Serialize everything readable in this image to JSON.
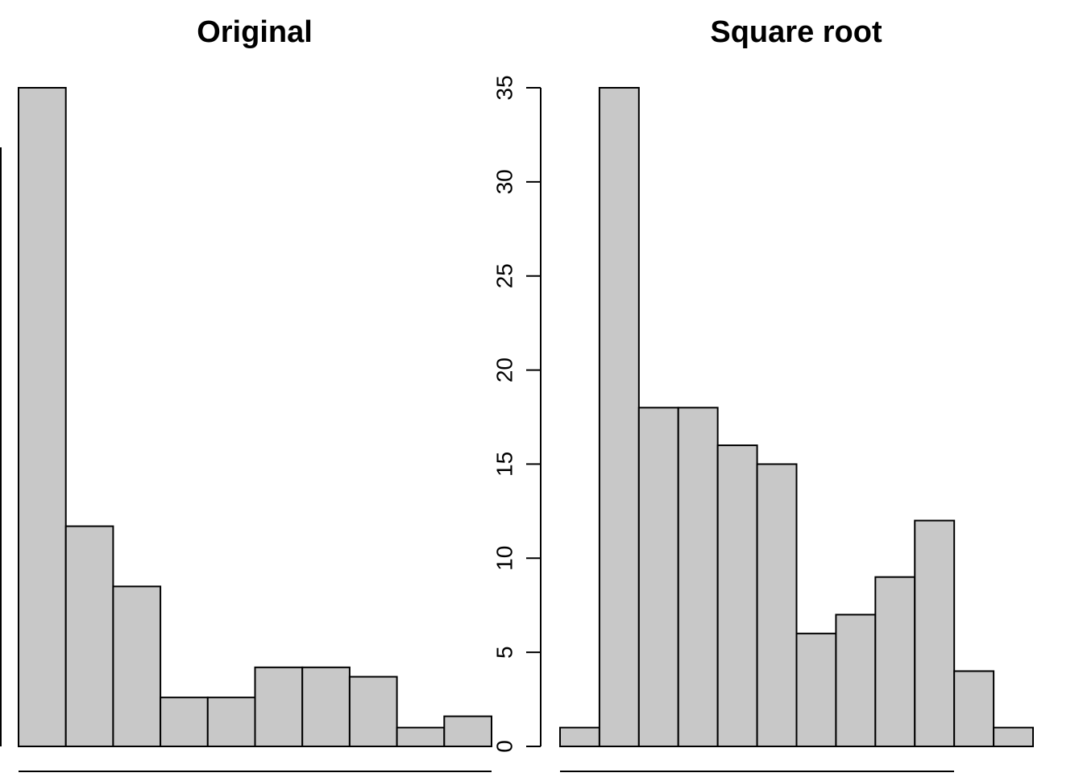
{
  "chart_data": [
    {
      "type": "bar",
      "title": "Original",
      "values": [
        35,
        11.7,
        8.5,
        2.6,
        2.6,
        4.2,
        4.2,
        3.7,
        1.0,
        1.6
      ],
      "ylim": [
        0,
        35
      ],
      "grid": false,
      "bar_fill": "#c8c8c8",
      "bar_stroke": "#000000"
    },
    {
      "type": "bar",
      "title": "Square root",
      "values": [
        1,
        35,
        18,
        18,
        16,
        15,
        6,
        7,
        9,
        12,
        4,
        1
      ],
      "ylim": [
        0,
        35
      ],
      "yticks": [
        0,
        5,
        10,
        15,
        20,
        25,
        30,
        35
      ],
      "grid": false,
      "bar_fill": "#c8c8c8",
      "bar_stroke": "#000000"
    }
  ]
}
